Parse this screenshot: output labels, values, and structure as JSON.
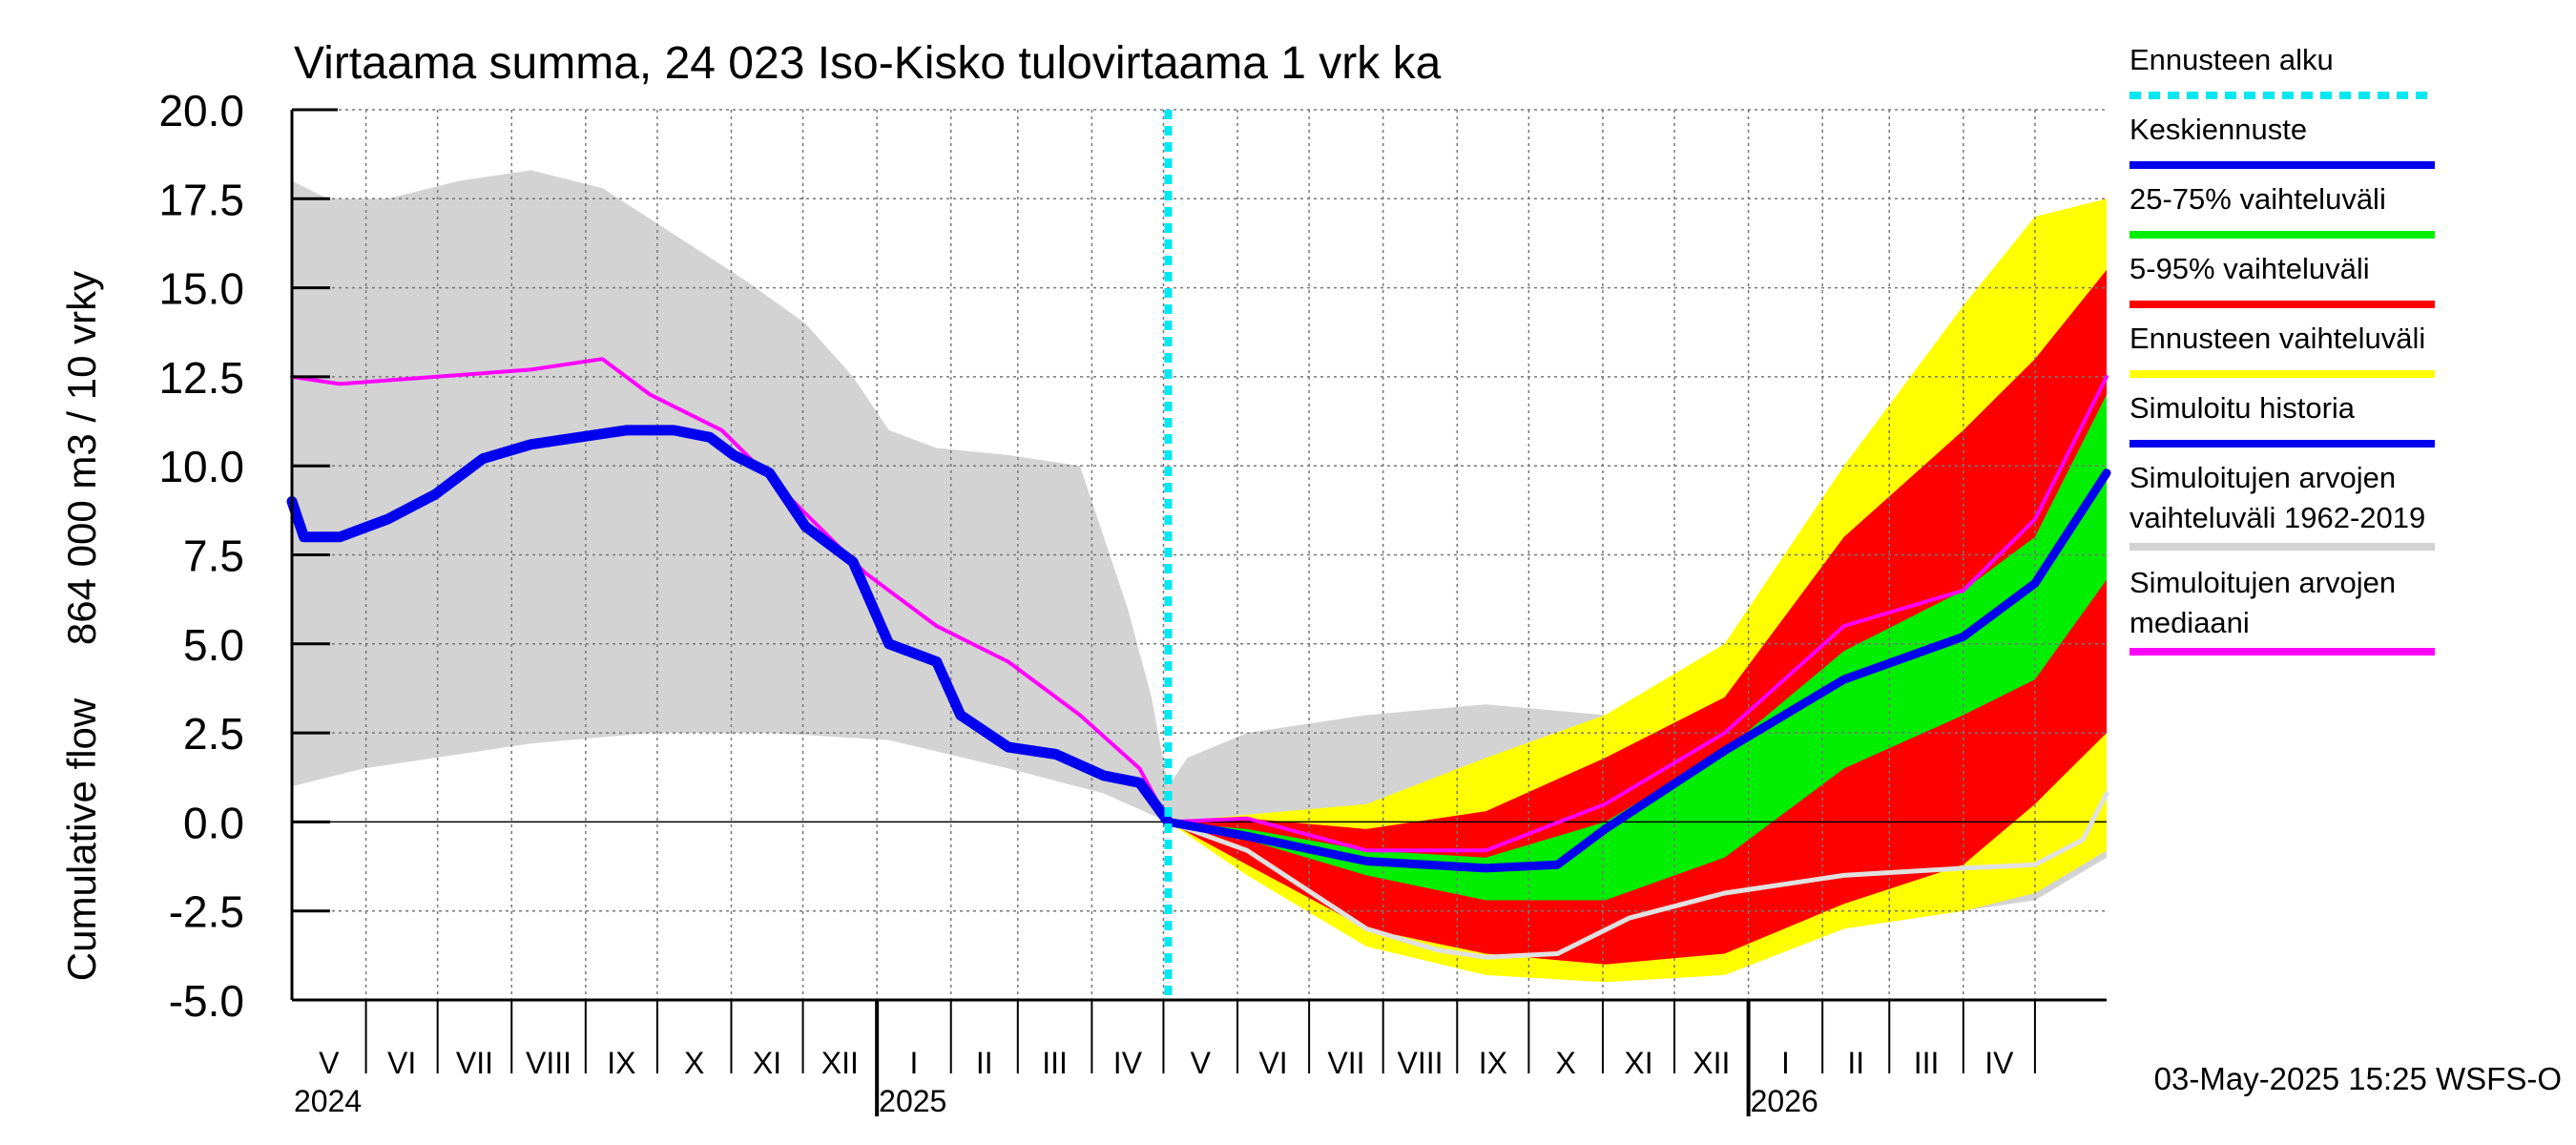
{
  "chart_data": {
    "type": "area",
    "title": "Virtaama summa, 24 023 Iso-Kisko tulovirtaama 1 vrk ka",
    "ylabel_fi": "864 000 m3 / 10 vrky",
    "ylabel_en": "Cumulative flow",
    "ylim": [
      -5.0,
      20.0
    ],
    "yticks": [
      "20.0",
      "17.5",
      "15.0",
      "12.5",
      "10.0",
      "7.5",
      "5.0",
      "2.5",
      "0.0",
      "-2.5",
      "-5.0"
    ],
    "x_days": [
      0,
      760
    ],
    "forecast_start_day": 367,
    "months": [
      "V",
      "VI",
      "VII",
      "VIII",
      "IX",
      "X",
      "XI",
      "XII",
      "I",
      "II",
      "III",
      "IV",
      "V",
      "VI",
      "VII",
      "VIII",
      "IX",
      "X",
      "XI",
      "XII",
      "I",
      "II",
      "III",
      "IV"
    ],
    "month_starts": [
      0,
      31,
      61,
      92,
      123,
      153,
      184,
      214,
      245,
      276,
      304,
      335,
      365,
      396,
      426,
      457,
      488,
      518,
      549,
      579,
      610,
      641,
      669,
      700,
      730
    ],
    "years": [
      {
        "label": "2024",
        "day": 0
      },
      {
        "label": "2025",
        "day": 245
      },
      {
        "label": "2026",
        "day": 610
      }
    ],
    "timestamp": "03-May-2025 15:25 WSFS-O",
    "grid": true,
    "colors": {
      "forecast_start": "#00e8f0",
      "mean_forecast": "#0000ee",
      "p25_75": "#00ee00",
      "p5_95": "#ff0000",
      "forecast_range": "#ffff00",
      "simulated": "#0000ee",
      "hist_range": "#d3d3d3",
      "hist_median": "#ff00ff",
      "light_line": "#e0e0e0"
    },
    "legend": [
      {
        "label": "Ennusteen alku",
        "kind": "dash",
        "color": "#00e8f0"
      },
      {
        "label": "Keskiennuste",
        "kind": "line",
        "color": "#0000ee"
      },
      {
        "label": "25-75% vaihteluväli",
        "kind": "line",
        "color": "#00ee00"
      },
      {
        "label": "5-95% vaihteluväli",
        "kind": "line",
        "color": "#ff0000"
      },
      {
        "label": "Ennusteen vaihteluväli",
        "kind": "line",
        "color": "#ffff00"
      },
      {
        "label": "Simuloitu historia",
        "kind": "line",
        "color": "#0000ee"
      },
      {
        "label": "Simuloitujen arvojen",
        "label2": "vaihteluväli 1962-2019",
        "kind": "line",
        "color": "#d3d3d3"
      },
      {
        "label": "Simuloitujen arvojen",
        "label2": "mediaani",
        "kind": "line",
        "color": "#ff00ff"
      }
    ],
    "series": [
      {
        "name": "hist_range_upper",
        "x": [
          0,
          15,
          40,
          70,
          100,
          130,
          160,
          190,
          215,
          235,
          250,
          270,
          300,
          330,
          350,
          360,
          367,
          375,
          400,
          450,
          500,
          550,
          600,
          650,
          700,
          730,
          760
        ],
        "y": [
          18,
          17.5,
          17.5,
          18,
          18.3,
          17.8,
          16.5,
          15.2,
          14,
          12.5,
          11,
          10.5,
          10.3,
          10,
          6,
          3.5,
          1,
          1.8,
          2.5,
          3,
          3.3,
          3,
          4,
          7,
          12,
          13.5,
          15
        ]
      },
      {
        "name": "hist_range_lower",
        "x": [
          0,
          30,
          100,
          150,
          200,
          250,
          300,
          340,
          360,
          367,
          375,
          400,
          450,
          500,
          550,
          600,
          650,
          700,
          730,
          760
        ],
        "y": [
          1,
          1.5,
          2.2,
          2.5,
          2.5,
          2.3,
          1.5,
          0.8,
          0.2,
          0,
          -0.3,
          -1.2,
          -2.5,
          -3.5,
          -4,
          -3.5,
          -2.8,
          -2.5,
          -2.2,
          -1
        ]
      },
      {
        "name": "forecast_range_upper",
        "x": [
          367,
          400,
          450,
          500,
          550,
          600,
          650,
          700,
          730,
          760
        ],
        "y": [
          0,
          0.2,
          0.5,
          1.8,
          3,
          5,
          10,
          14.5,
          17,
          17.5
        ]
      },
      {
        "name": "forecast_range_lower",
        "x": [
          367,
          400,
          450,
          500,
          550,
          600,
          650,
          700,
          730,
          760
        ],
        "y": [
          0,
          -1.5,
          -3.5,
          -4.3,
          -4.5,
          -4.3,
          -3,
          -2.5,
          -2,
          -0.8
        ]
      },
      {
        "name": "p5_95_upper",
        "x": [
          367,
          400,
          450,
          500,
          550,
          600,
          650,
          700,
          730,
          760
        ],
        "y": [
          0,
          0.1,
          -0.2,
          0.3,
          1.8,
          3.5,
          8,
          11,
          13,
          15.5
        ]
      },
      {
        "name": "p5_95_lower",
        "x": [
          367,
          400,
          450,
          500,
          550,
          600,
          650,
          700,
          730,
          760
        ],
        "y": [
          0,
          -1.2,
          -3,
          -3.7,
          -4,
          -3.7,
          -2.3,
          -1.2,
          0.5,
          2.5
        ]
      },
      {
        "name": "p25_75_upper",
        "x": [
          367,
          400,
          450,
          500,
          550,
          600,
          650,
          700,
          730,
          760
        ],
        "y": [
          0,
          -0.2,
          -0.8,
          -1,
          0,
          2,
          4.8,
          6.5,
          8,
          12
        ]
      },
      {
        "name": "p25_75_lower",
        "x": [
          367,
          400,
          450,
          500,
          550,
          600,
          650,
          700,
          730,
          760
        ],
        "y": [
          0,
          -0.5,
          -1.5,
          -2.2,
          -2.2,
          -1,
          1.5,
          3,
          4,
          6.8
        ]
      },
      {
        "name": "hist_median",
        "x": [
          0,
          20,
          60,
          100,
          130,
          140,
          150,
          180,
          210,
          240,
          270,
          300,
          330,
          355,
          367,
          400,
          450,
          500,
          550,
          600,
          650,
          700,
          730,
          760
        ],
        "y": [
          12.5,
          12.3,
          12.5,
          12.7,
          13,
          12.5,
          12,
          11,
          9,
          7,
          5.5,
          4.5,
          3,
          1.5,
          0,
          0.1,
          -0.8,
          -0.8,
          0.5,
          2.5,
          5.5,
          6.5,
          8.5,
          12.5
        ]
      },
      {
        "name": "simulated_history",
        "x": [
          0,
          5,
          20,
          40,
          60,
          80,
          100,
          120,
          140,
          160,
          175,
          185,
          200,
          215,
          235,
          250,
          270,
          280,
          300,
          320,
          340,
          355,
          367
        ],
        "y": [
          9,
          8,
          8,
          8.5,
          9.2,
          10.2,
          10.6,
          10.8,
          11,
          11,
          10.8,
          10.3,
          9.8,
          8.3,
          7.3,
          5,
          4.5,
          3,
          2.1,
          1.9,
          1.3,
          1.1,
          0
        ]
      },
      {
        "name": "mean_forecast",
        "x": [
          367,
          400,
          450,
          500,
          530,
          550,
          600,
          650,
          700,
          730,
          760
        ],
        "y": [
          0,
          -0.4,
          -1.1,
          -1.3,
          -1.2,
          -0.2,
          2,
          4,
          5.2,
          6.7,
          9.8
        ]
      },
      {
        "name": "light_line",
        "x": [
          367,
          400,
          450,
          480,
          500,
          530,
          560,
          600,
          650,
          700,
          730,
          750,
          760
        ],
        "y": [
          0,
          -0.8,
          -3,
          -3.6,
          -3.8,
          -3.7,
          -2.7,
          -2,
          -1.5,
          -1.3,
          -1.2,
          -0.5,
          0.8
        ]
      }
    ]
  }
}
